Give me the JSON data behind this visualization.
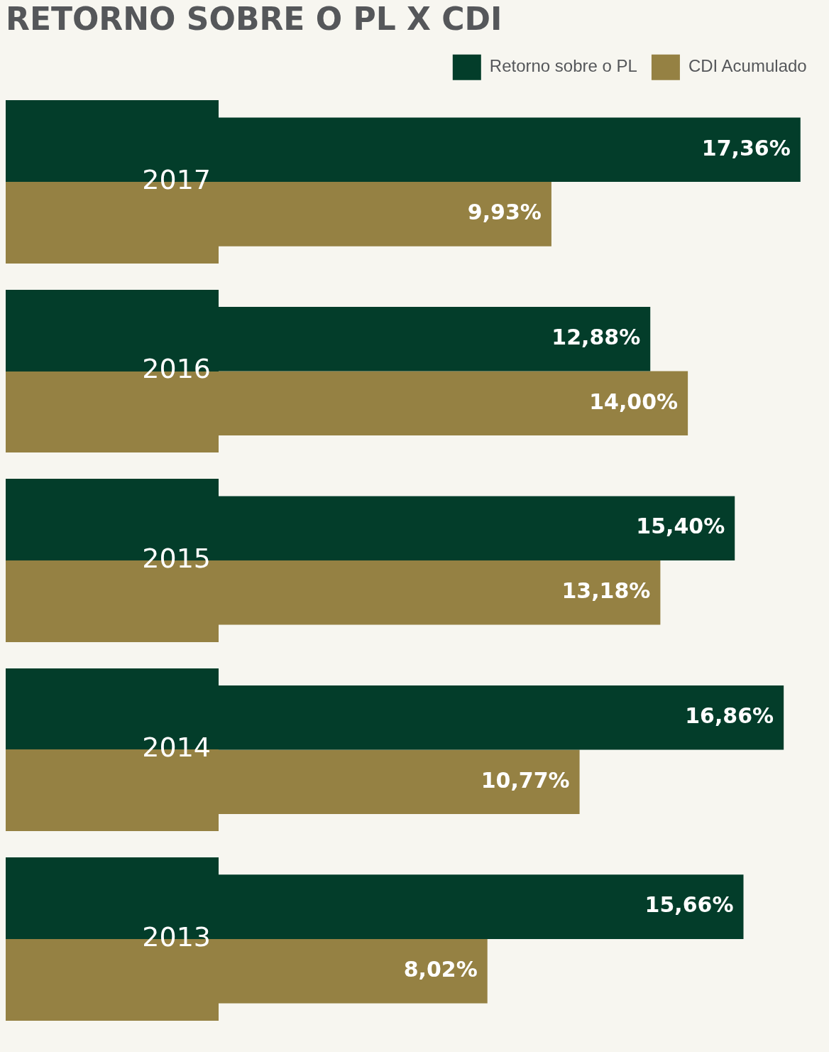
{
  "chart_data": {
    "type": "bar",
    "orientation": "horizontal",
    "title": "RETORNO SOBRE O PL X CDI",
    "categories": [
      "2017",
      "2016",
      "2015",
      "2014",
      "2013"
    ],
    "legend": "top right",
    "series": [
      {
        "name": "Retorno sobre o PL",
        "color": "#033d2a",
        "values": [
          17.36,
          12.88,
          15.4,
          16.86,
          15.66
        ],
        "value_labels": [
          "17,36%",
          "12,88%",
          "15,40%",
          "16,86%",
          "15,66%"
        ]
      },
      {
        "name": "CDI Acumulado",
        "color": "#958143",
        "values": [
          9.93,
          14.0,
          13.18,
          10.77,
          8.02
        ],
        "value_labels": [
          "9,93%",
          "14,00%",
          "13,18%",
          "10,77%",
          "8,02%"
        ]
      }
    ]
  }
}
